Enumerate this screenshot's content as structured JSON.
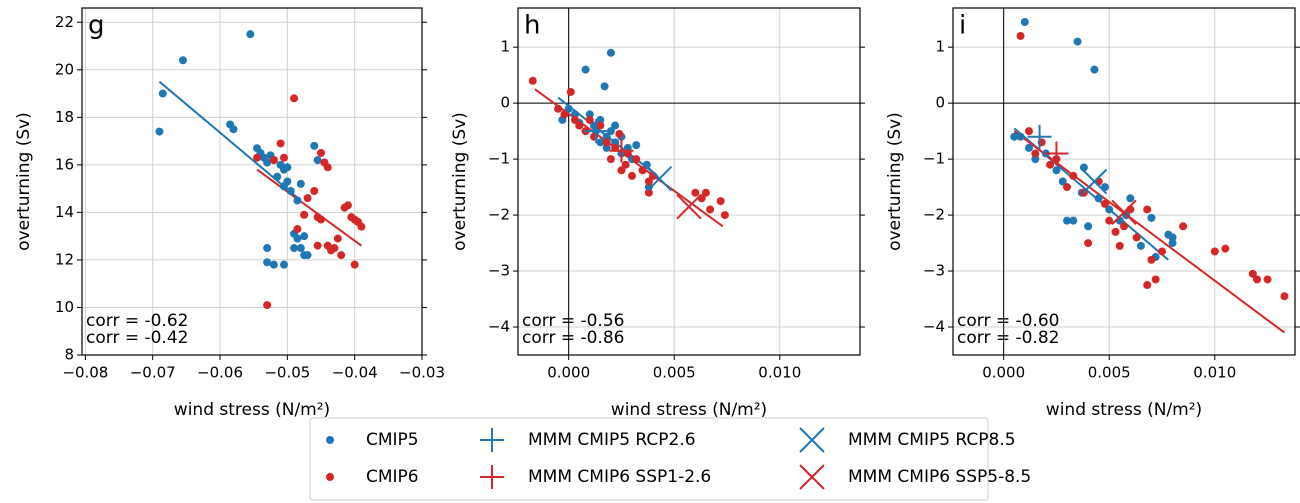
{
  "chart_data": [
    {
      "type": "scatter",
      "panel_label": "g",
      "xlabel": "wind stress (N/m²)",
      "ylabel": "overturning (Sv)",
      "xlim": [
        -0.0805,
        -0.03
      ],
      "ylim": [
        8,
        22.6
      ],
      "xticks": [
        {
          "value": -0.08,
          "label": "−0.08"
        },
        {
          "value": -0.07,
          "label": "−0.07"
        },
        {
          "value": -0.06,
          "label": "−0.06"
        },
        {
          "value": -0.05,
          "label": "−0.05"
        },
        {
          "value": -0.04,
          "label": "−0.04"
        },
        {
          "value": -0.03,
          "label": "−0.03"
        }
      ],
      "yticks": [
        8,
        10,
        12,
        14,
        16,
        18,
        20,
        22
      ],
      "grid": true,
      "zero_lines": false,
      "series": [
        {
          "name": "CMIP5",
          "color": "#1f77b4",
          "marker": "o",
          "x": [
            -0.069,
            -0.0685,
            -0.0655,
            -0.0555,
            -0.0585,
            -0.058,
            -0.0545,
            -0.054,
            -0.0535,
            -0.053,
            -0.0525,
            -0.052,
            -0.0515,
            -0.051,
            -0.0505,
            -0.05,
            -0.05,
            -0.0495,
            -0.0505,
            -0.0485,
            -0.048,
            -0.046,
            -0.0455,
            -0.053,
            -0.053,
            -0.052,
            -0.0505,
            -0.049,
            -0.0485,
            -0.048,
            -0.0475,
            -0.047,
            -0.049,
            -0.0475
          ],
          "y": [
            17.4,
            19.0,
            20.4,
            21.5,
            17.7,
            17.5,
            16.7,
            16.5,
            16.3,
            16.1,
            16.4,
            16.2,
            15.5,
            16.0,
            15.8,
            15.9,
            15.3,
            14.9,
            15.1,
            14.5,
            15.2,
            16.8,
            16.2,
            12.5,
            11.9,
            11.8,
            11.8,
            13.1,
            12.9,
            12.5,
            12.2,
            12.2,
            12.5,
            13.0
          ]
        },
        {
          "name": "CMIP6",
          "color": "#d62728",
          "marker": "o",
          "x": [
            -0.053,
            -0.0545,
            -0.052,
            -0.051,
            -0.0505,
            -0.049,
            -0.0485,
            -0.0475,
            -0.047,
            -0.046,
            -0.0455,
            -0.045,
            -0.045,
            -0.0445,
            -0.044,
            -0.044,
            -0.0435,
            -0.043,
            -0.0425,
            -0.042,
            -0.0415,
            -0.041,
            -0.0405,
            -0.04,
            -0.0395,
            -0.039,
            -0.04,
            -0.0455
          ],
          "y": [
            10.1,
            16.3,
            16.2,
            16.9,
            16.3,
            18.8,
            13.3,
            13.9,
            14.6,
            14.9,
            13.8,
            13.7,
            16.5,
            16.1,
            15.9,
            12.6,
            12.4,
            12.5,
            12.9,
            12.2,
            14.2,
            14.3,
            13.8,
            13.7,
            13.6,
            13.4,
            11.8,
            12.6
          ]
        }
      ],
      "trend_lines": [
        {
          "color": "#1f77b4",
          "x": [
            -0.069,
            -0.048
          ],
          "y": [
            19.5,
            14.5
          ]
        },
        {
          "color": "#d62728",
          "x": [
            -0.0545,
            -0.039
          ],
          "y": [
            15.8,
            12.6
          ]
        }
      ],
      "annotations": [
        {
          "text": "corr = -0.62",
          "color": "#1f77b4"
        },
        {
          "text": "corr = -0.42",
          "color": "#d62728"
        }
      ]
    },
    {
      "type": "scatter",
      "panel_label": "h",
      "xlabel": "wind stress (N/m²)",
      "ylabel": "overturning (Sv)",
      "xlim": [
        -0.0024,
        0.0138
      ],
      "ylim": [
        -4.5,
        1.7
      ],
      "xticks": [
        {
          "value": 0,
          "label": "0.000"
        },
        {
          "value": 0.005,
          "label": "0.005"
        },
        {
          "value": 0.01,
          "label": "0.010"
        }
      ],
      "yticks": [
        {
          "value": -4,
          "label": "−4"
        },
        {
          "value": -3,
          "label": "−3"
        },
        {
          "value": -2,
          "label": "−2"
        },
        {
          "value": -1,
          "label": "−1"
        },
        0,
        1
      ],
      "grid": true,
      "zero_lines": true,
      "series": [
        {
          "name": "CMIP5",
          "color": "#1f77b4",
          "marker": "o",
          "x": [
            -0.0003,
            0.0,
            0.0003,
            0.0005,
            0.0008,
            0.001,
            0.0012,
            0.0013,
            0.0015,
            0.0017,
            0.0018,
            0.0018,
            0.002,
            0.002,
            0.0022,
            0.0025,
            0.0025,
            0.0028,
            0.003,
            0.0032,
            0.0035,
            0.0037,
            0.0038,
            0.004,
            0.0022,
            0.0015
          ],
          "y": [
            -0.3,
            -0.1,
            -0.2,
            -0.35,
            0.6,
            -0.2,
            -0.4,
            -0.5,
            -0.3,
            0.3,
            -0.6,
            -0.8,
            -0.5,
            0.9,
            -0.7,
            -0.6,
            -0.9,
            -0.8,
            -1.0,
            -0.75,
            -1.2,
            -1.1,
            -1.5,
            -1.3,
            -0.4,
            -0.7
          ]
        },
        {
          "name": "CMIP6",
          "color": "#d62728",
          "marker": "o",
          "x": [
            -0.0017,
            -0.0005,
            -0.0002,
            0.0001,
            0.0003,
            0.0005,
            0.0008,
            0.001,
            0.0012,
            0.0015,
            0.0018,
            0.002,
            0.0022,
            0.0024,
            0.0025,
            0.0027,
            0.0028,
            0.003,
            0.0032,
            0.0035,
            0.0038,
            0.004,
            0.0038,
            0.006,
            0.0063,
            0.0065,
            0.0067,
            0.0072,
            0.0074
          ],
          "y": [
            0.4,
            -0.1,
            -0.2,
            0.2,
            -0.3,
            -0.4,
            -0.5,
            -0.3,
            -0.6,
            -0.4,
            -0.7,
            -1.0,
            -0.8,
            -0.55,
            -1.2,
            -1.1,
            -0.9,
            -1.3,
            -1.0,
            -1.2,
            -1.4,
            -1.3,
            -1.6,
            -1.6,
            -1.7,
            -1.6,
            -1.9,
            -1.75,
            -2.0
          ]
        },
        {
          "name": "MMM CMIP5 RCP2.6",
          "color": "#1f77b4",
          "marker": "+",
          "x": [
            0.0013
          ],
          "y": [
            -0.5
          ]
        },
        {
          "name": "MMM CMIP6 SSP1-2.6",
          "color": "#d62728",
          "marker": "+",
          "x": [
            0.0025
          ],
          "y": [
            -0.85
          ]
        },
        {
          "name": "MMM CMIP5 RCP8.5",
          "color": "#1f77b4",
          "marker": "x",
          "x": [
            0.0043
          ],
          "y": [
            -1.35
          ]
        },
        {
          "name": "MMM CMIP6 SSP5-8.5",
          "color": "#d62728",
          "marker": "x",
          "x": [
            0.0057
          ],
          "y": [
            -1.85
          ]
        }
      ],
      "trend_lines": [
        {
          "color": "#1f77b4",
          "x": [
            -0.0005,
            0.0042
          ],
          "y": [
            0.1,
            -1.3
          ]
        },
        {
          "color": "#d62728",
          "x": [
            -0.0016,
            0.0073
          ],
          "y": [
            0.25,
            -2.2
          ]
        }
      ],
      "annotations": [
        {
          "text": "corr = -0.56",
          "color": "#1f77b4"
        },
        {
          "text": "corr = -0.86",
          "color": "#d62728"
        }
      ]
    },
    {
      "type": "scatter",
      "panel_label": "i",
      "xlabel": "wind stress (N/m²)",
      "ylabel": "overturning (Sv)",
      "xlim": [
        -0.0024,
        0.0138
      ],
      "ylim": [
        -4.5,
        1.7
      ],
      "xticks": [
        {
          "value": 0,
          "label": "0.000"
        },
        {
          "value": 0.005,
          "label": "0.005"
        },
        {
          "value": 0.01,
          "label": "0.010"
        }
      ],
      "yticks": [
        {
          "value": -4,
          "label": "−4"
        },
        {
          "value": -3,
          "label": "−3"
        },
        {
          "value": -2,
          "label": "−2"
        },
        {
          "value": -1,
          "label": "−1"
        },
        0,
        1
      ],
      "grid": true,
      "zero_lines": true,
      "series": [
        {
          "name": "CMIP5",
          "color": "#1f77b4",
          "marker": "o",
          "x": [
            0.0005,
            0.0008,
            0.001,
            0.0012,
            0.0015,
            0.002,
            0.0025,
            0.0028,
            0.003,
            0.0033,
            0.0035,
            0.0037,
            0.0038,
            0.004,
            0.0043,
            0.0045,
            0.0048,
            0.005,
            0.0055,
            0.0058,
            0.006,
            0.0065,
            0.007,
            0.0072,
            0.0078,
            0.008,
            0.008
          ],
          "y": [
            -0.6,
            -0.6,
            1.45,
            -0.8,
            -1.0,
            -0.9,
            -1.2,
            -1.4,
            -2.1,
            -2.1,
            1.1,
            -1.6,
            -1.15,
            -2.2,
            0.6,
            -1.7,
            -1.5,
            -1.9,
            -2.1,
            -2.0,
            -1.7,
            -2.55,
            -2.05,
            -2.75,
            -2.35,
            -2.5,
            -2.4
          ]
        },
        {
          "name": "CMIP6",
          "color": "#d62728",
          "marker": "o",
          "x": [
            0.0008,
            0.0012,
            0.0015,
            0.0018,
            0.0022,
            0.0025,
            0.003,
            0.0033,
            0.0038,
            0.004,
            0.0045,
            0.0048,
            0.005,
            0.0053,
            0.0055,
            0.0057,
            0.006,
            0.0063,
            0.0068,
            0.007,
            0.0072,
            0.0075,
            0.0085,
            0.01,
            0.0105,
            0.0118,
            0.012,
            0.0125,
            0.0133,
            0.0068
          ],
          "y": [
            1.2,
            -0.5,
            -0.9,
            -0.7,
            -1.1,
            -1.0,
            -1.5,
            -1.3,
            -1.6,
            -2.5,
            -1.4,
            -1.8,
            -2.1,
            -2.3,
            -2.55,
            -2.2,
            -1.9,
            -2.4,
            -3.25,
            -2.8,
            -3.15,
            -2.65,
            -2.2,
            -2.65,
            -2.6,
            -3.05,
            -3.15,
            -3.15,
            -3.45,
            -1.9
          ]
        },
        {
          "name": "MMM CMIP5 RCP2.6",
          "color": "#1f77b4",
          "marker": "+",
          "x": [
            0.0017
          ],
          "y": [
            -0.6
          ]
        },
        {
          "name": "MMM CMIP6 SSP1-2.6",
          "color": "#d62728",
          "marker": "+",
          "x": [
            0.0025
          ],
          "y": [
            -0.9
          ]
        },
        {
          "name": "MMM CMIP5 RCP8.5",
          "color": "#1f77b4",
          "marker": "x",
          "x": [
            0.0043
          ],
          "y": [
            -1.4
          ]
        },
        {
          "name": "MMM CMIP6 SSP5-8.5",
          "color": "#d62728",
          "marker": "x",
          "x": [
            0.0057
          ],
          "y": [
            -1.95
          ]
        }
      ],
      "trend_lines": [
        {
          "color": "#1f77b4",
          "x": [
            0.0005,
            0.0078
          ],
          "y": [
            -0.45,
            -2.8
          ]
        },
        {
          "color": "#d62728",
          "x": [
            0.0005,
            0.0133
          ],
          "y": [
            -0.5,
            -4.1
          ]
        }
      ],
      "annotations": [
        {
          "text": "corr = -0.60",
          "color": "#1f77b4"
        },
        {
          "text": "corr = -0.82",
          "color": "#d62728"
        }
      ]
    }
  ],
  "legend": {
    "entries": [
      {
        "name": "CMIP5",
        "color": "#1f77b4",
        "marker": "o"
      },
      {
        "name": "CMIP6",
        "color": "#d62728",
        "marker": "o"
      },
      {
        "name": "MMM CMIP5 RCP2.6",
        "color": "#1f77b4",
        "marker": "+"
      },
      {
        "name": "MMM CMIP6 SSP1-2.6",
        "color": "#d62728",
        "marker": "+"
      },
      {
        "name": "MMM CMIP5 RCP8.5",
        "color": "#1f77b4",
        "marker": "x"
      },
      {
        "name": "MMM CMIP6 SSP5-8.5",
        "color": "#d62728",
        "marker": "x"
      }
    ]
  }
}
